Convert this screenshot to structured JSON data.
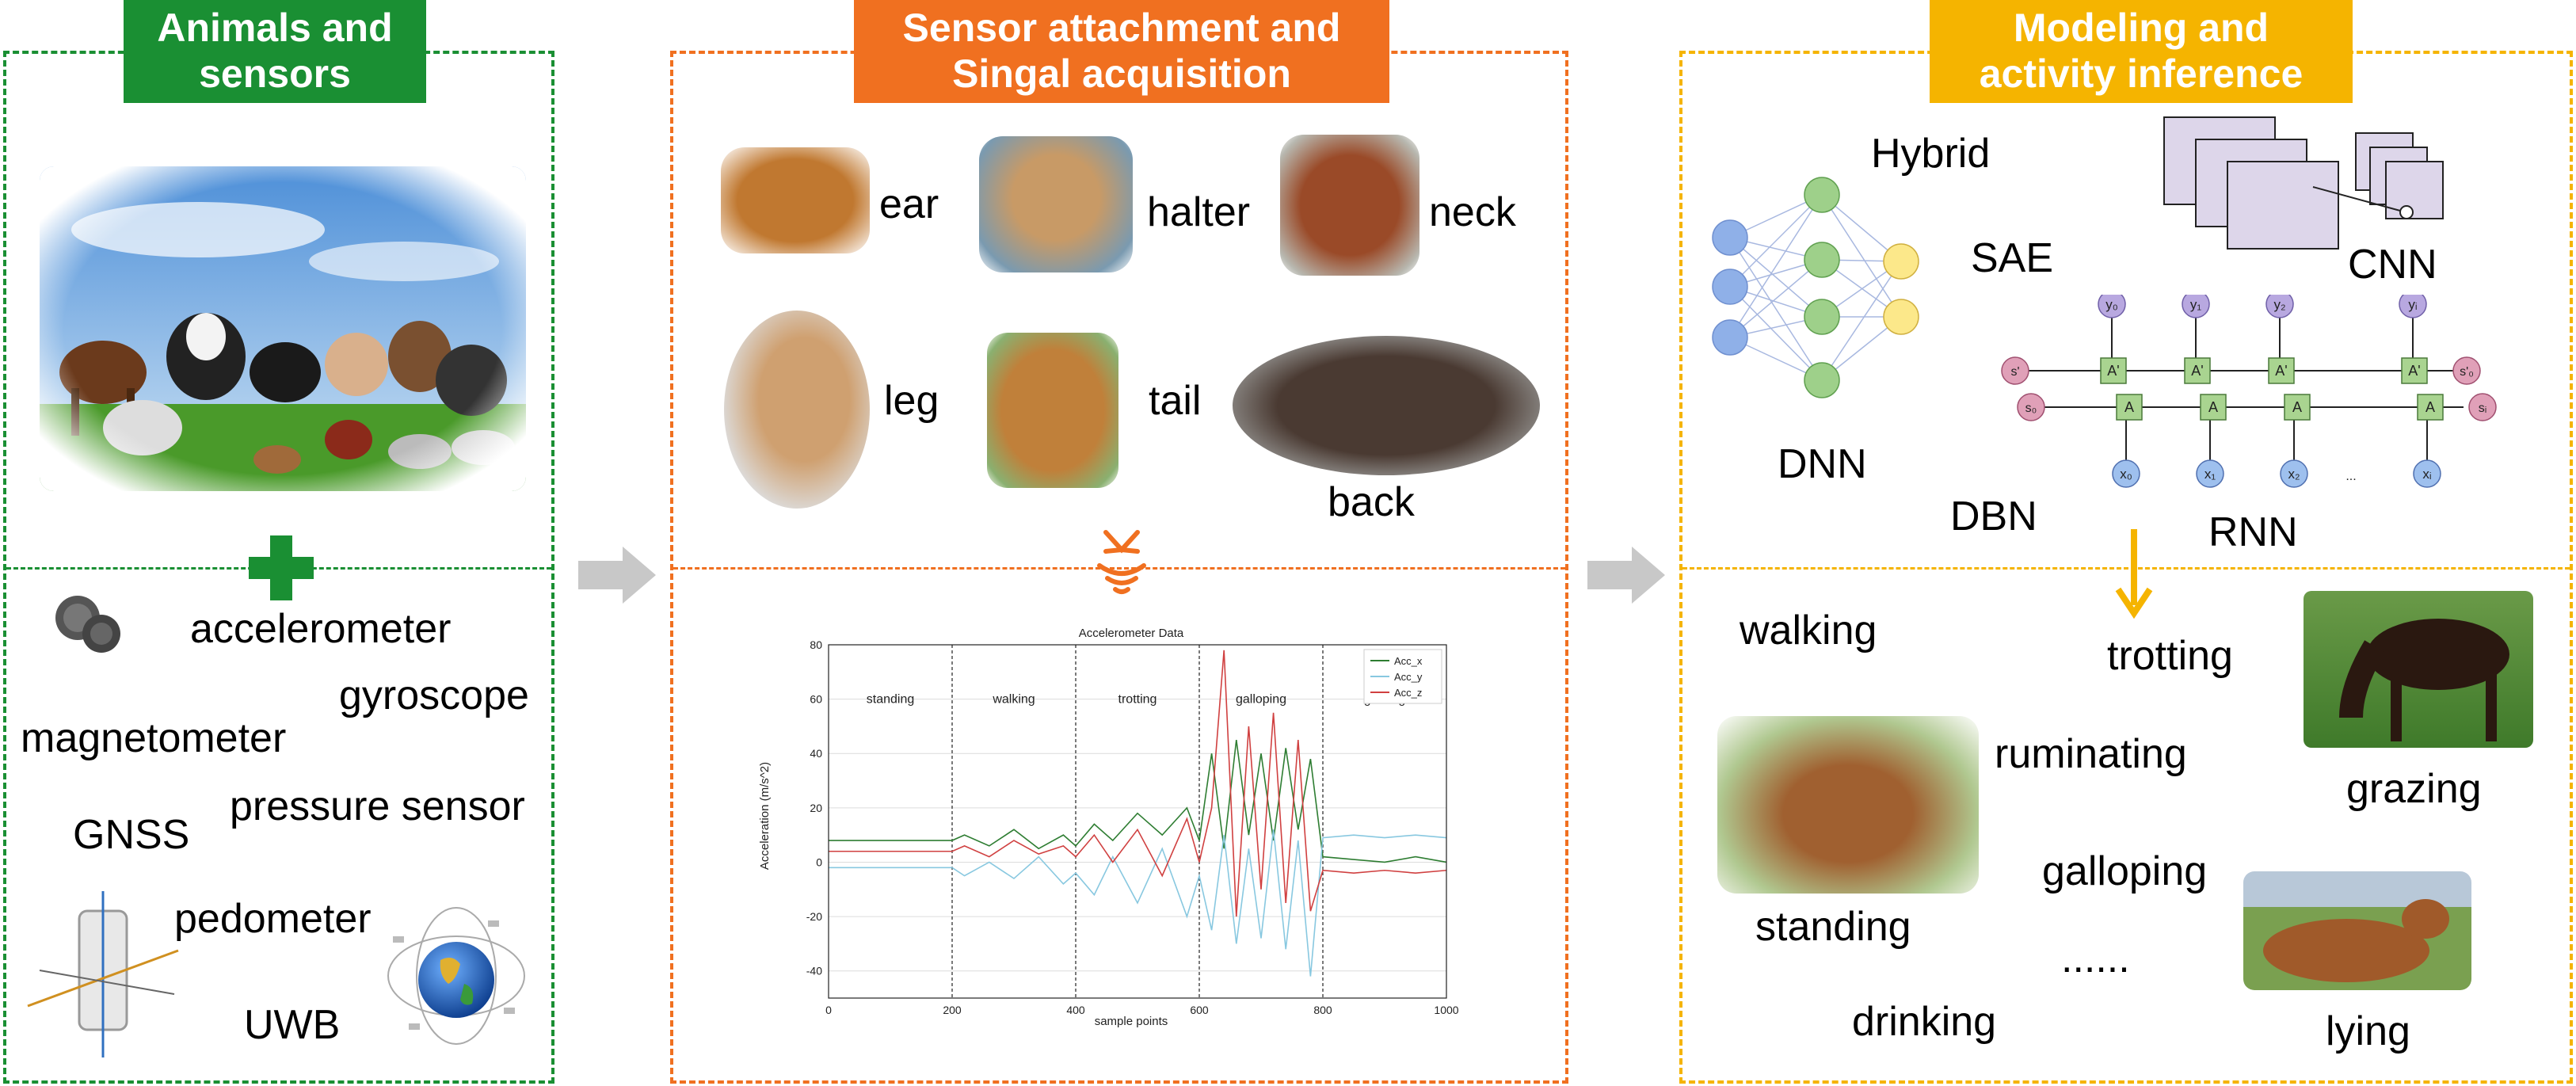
{
  "panels": {
    "animals": {
      "header": "Animals and\nsensors",
      "color": "#1a8f33",
      "sensors": [
        "accelerometer",
        "gyroscope",
        "magnetometer",
        "GNSS",
        "pressure sensor",
        "pedometer",
        "UWB"
      ]
    },
    "attachment": {
      "header": "Sensor attachment and\nSingal acquisition",
      "color": "#f07020",
      "positions": [
        "ear",
        "halter",
        "neck",
        "leg",
        "tail",
        "back"
      ]
    },
    "modeling": {
      "header": "Modeling and\nactivity inference",
      "color": "#f5b400",
      "models": [
        "Hybrid",
        "SAE",
        "CNN",
        "DNN",
        "DBN",
        "RNN"
      ],
      "activities": [
        "walking",
        "trotting",
        "ruminating",
        "grazing",
        "galloping",
        "standing",
        "......",
        "drinking",
        "lying"
      ]
    }
  },
  "rnn": {
    "y_labels": [
      "y₀",
      "y₁",
      "y₂",
      "yᵢ"
    ],
    "x_labels": [
      "x₀",
      "x₁",
      "x₂",
      "xᵢ"
    ],
    "a_label": "A",
    "a_prime_label": "A'",
    "s_labels": [
      "s'",
      "s₀",
      "s'₀",
      "sᵢ"
    ],
    "ellipsis": "..."
  },
  "chart_data": {
    "type": "line",
    "title": "Accelerometer Data",
    "xlabel": "sample points",
    "ylabel": "Acceleration (m/s^2)",
    "xlim": [
      0,
      1000
    ],
    "ylim": [
      -50,
      80
    ],
    "xticks": [
      0,
      200,
      400,
      600,
      800,
      1000
    ],
    "yticks": [
      -40,
      -20,
      0,
      20,
      40,
      60,
      80
    ],
    "grid": true,
    "legend_position": "top-right",
    "segments": [
      {
        "label": "standing",
        "x_start": 0,
        "x_end": 200
      },
      {
        "label": "walking",
        "x_start": 200,
        "x_end": 400
      },
      {
        "label": "trotting",
        "x_start": 400,
        "x_end": 600
      },
      {
        "label": "galloping",
        "x_start": 600,
        "x_end": 800
      },
      {
        "label": "grazing",
        "x_start": 800,
        "x_end": 1000
      }
    ],
    "series": [
      {
        "name": "Acc_x",
        "color": "#2e7d32",
        "x": [
          0,
          100,
          200,
          220,
          260,
          300,
          340,
          380,
          400,
          430,
          460,
          500,
          540,
          580,
          600,
          620,
          640,
          660,
          680,
          700,
          720,
          740,
          760,
          780,
          800,
          850,
          900,
          950,
          1000
        ],
        "values": [
          8,
          8,
          8,
          10,
          6,
          12,
          5,
          10,
          6,
          14,
          8,
          18,
          10,
          20,
          8,
          40,
          5,
          45,
          10,
          40,
          8,
          42,
          12,
          38,
          2,
          1,
          0,
          2,
          0
        ]
      },
      {
        "name": "Acc_y",
        "color": "#88c8e0",
        "x": [
          0,
          100,
          200,
          220,
          260,
          300,
          340,
          380,
          400,
          430,
          460,
          500,
          540,
          580,
          600,
          620,
          640,
          660,
          680,
          700,
          720,
          740,
          760,
          780,
          800,
          850,
          900,
          950,
          1000
        ],
        "values": [
          -2,
          -2,
          -2,
          -5,
          0,
          -6,
          2,
          -8,
          -4,
          -12,
          2,
          -15,
          5,
          -20,
          -5,
          -25,
          10,
          -30,
          5,
          -28,
          12,
          -32,
          8,
          -42,
          9,
          10,
          9,
          10,
          9
        ]
      },
      {
        "name": "Acc_z",
        "color": "#d04040",
        "x": [
          0,
          100,
          200,
          220,
          260,
          300,
          340,
          380,
          400,
          430,
          460,
          500,
          540,
          580,
          600,
          620,
          640,
          660,
          680,
          700,
          720,
          740,
          760,
          780,
          800,
          850,
          900,
          950,
          1000
        ],
        "values": [
          4,
          4,
          4,
          6,
          2,
          8,
          3,
          6,
          2,
          10,
          0,
          12,
          -5,
          16,
          0,
          20,
          78,
          -20,
          50,
          -10,
          55,
          -15,
          45,
          -18,
          -3,
          -4,
          -3,
          -4,
          -3
        ]
      }
    ]
  }
}
